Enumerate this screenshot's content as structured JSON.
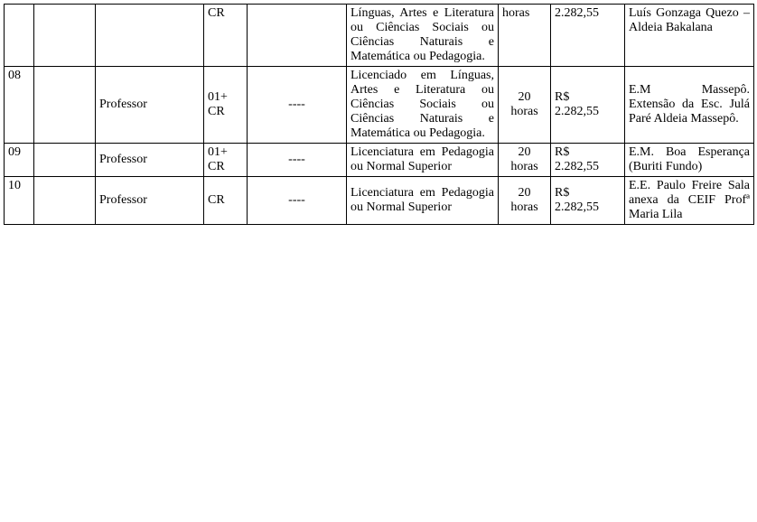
{
  "rows": [
    {
      "num": "",
      "blank1": "",
      "role": "",
      "vac": "CR",
      "dash": "",
      "req": "Línguas, Artes e Literatura ou Ciências Sociais ou Ciências Naturais e Matemática ou Pedagogia.",
      "hours_a": "horas",
      "hours_b": "",
      "sal_a": "2.282,55",
      "sal_b": "",
      "loc": "Luís Gonzaga Quezo – Aldeia Bakalana"
    },
    {
      "num": "08",
      "blank1": "",
      "role": "Professor",
      "vac": "01+ CR",
      "dash": "----",
      "req": "Licenciado em Línguas, Artes e Literatura ou Ciências Sociais ou Ciências Naturais e Matemática ou Pedagogia.",
      "hours_a": "20",
      "hours_b": "horas",
      "sal_a": "R$",
      "sal_b": "2.282,55",
      "loc": "E.M Massepô. Extensão da Esc. Julá Paré Aldeia Massepô."
    },
    {
      "num": "09",
      "blank1": "",
      "role": "Professor",
      "vac": "01+ CR",
      "dash": "----",
      "req": "Licenciatura em Pedagogia ou Normal Superior",
      "hours_a": "20",
      "hours_b": "horas",
      "sal_a": "R$",
      "sal_b": "2.282,55",
      "loc": "E.M.\nBoa Esperança (Buriti Fundo)"
    },
    {
      "num": "10",
      "blank1": "",
      "role": "Professor",
      "vac": "CR",
      "dash": "----",
      "req": "Licenciatura em Pedagogia ou Normal Superior",
      "hours_a": "20",
      "hours_b": "horas",
      "sal_a": "R$",
      "sal_b": "2.282,55",
      "loc": "E.E. Paulo Freire\nSala anexa da CEIF Profª Maria Lila"
    }
  ]
}
